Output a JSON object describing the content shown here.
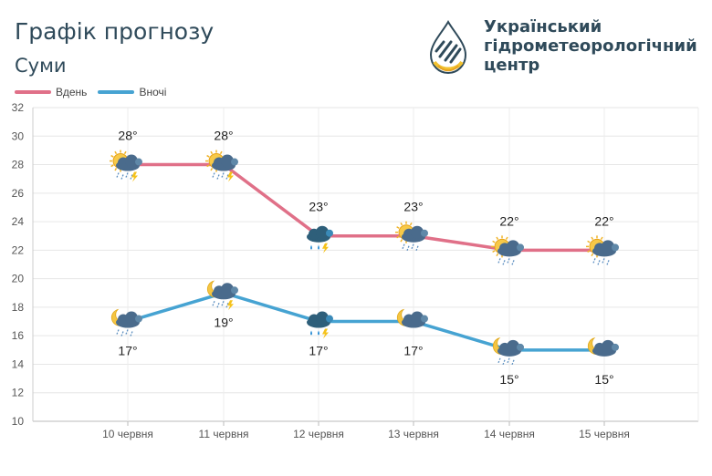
{
  "header": {
    "title": "Графік прогнозу",
    "city": "Суми",
    "org_lines": [
      "Український",
      "гідрометеорологічний",
      "центр"
    ]
  },
  "chart_data": {
    "type": "line",
    "categories": [
      "10 червня",
      "11 червня",
      "12 червня",
      "13 червня",
      "14 червня",
      "15 червня"
    ],
    "series": [
      {
        "name": "Вдень",
        "color": "#e07088",
        "values": [
          28,
          28,
          23,
          23,
          22,
          22
        ],
        "labels": [
          "28°",
          "28°",
          "23°",
          "23°",
          "22°",
          "22°"
        ]
      },
      {
        "name": "Вночі",
        "color": "#46a3d2",
        "values": [
          17,
          19,
          17,
          17,
          15,
          15
        ],
        "labels": [
          "17°",
          "19°",
          "17°",
          "17°",
          "15°",
          "15°"
        ]
      }
    ],
    "ylim": [
      10,
      32
    ],
    "yticks": [
      "10",
      "12",
      "14",
      "16",
      "18",
      "20",
      "22",
      "24",
      "26",
      "28",
      "30",
      "32"
    ],
    "grid": true,
    "legend_position": "top-left",
    "day_icons": [
      "sun-cloud-rain-thunder",
      "sun-cloud-rain-thunder",
      "cloud-rain-thunder",
      "sun-cloud-rain",
      "sun-cloud-rain",
      "sun-cloud-rain"
    ],
    "night_icons": [
      "moon-cloud-rain",
      "moon-cloud-rain-thunder",
      "cloud-rain-thunder",
      "moon-cloud",
      "moon-cloud-rain",
      "moon-cloud"
    ]
  }
}
